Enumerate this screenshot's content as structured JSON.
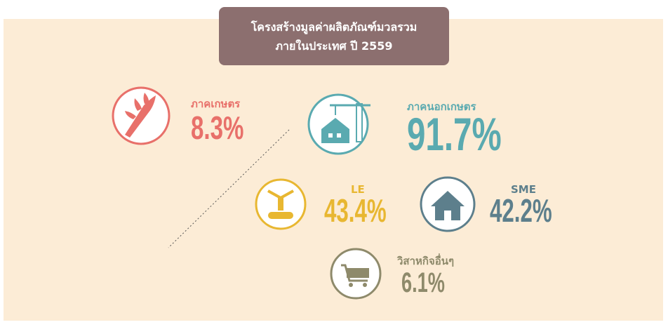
{
  "title": {
    "line1": "โครงสร้างมูลค่าผลิตภัณฑ์มวลรวม",
    "line2": "ภายในประเทศ ปี 2559"
  },
  "items": [
    {
      "label": "ภาคเกษตร",
      "value": "8.3%"
    },
    {
      "label": "ภาคนอกเกษตร",
      "value": "91.7%"
    },
    {
      "label": "LE",
      "value": "43.4%"
    },
    {
      "label": "SME",
      "value": "42.2%"
    },
    {
      "label": "วิสาหกิจอื่นๆ",
      "value": "6.1%"
    }
  ]
}
